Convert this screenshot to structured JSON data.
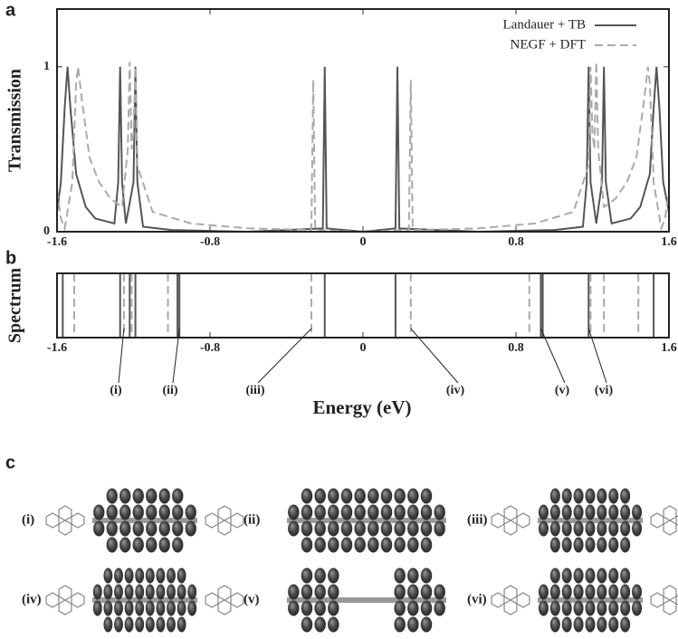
{
  "chart_data": [
    {
      "type": "line",
      "panel_label": "a",
      "y_label": "Transmission",
      "xlim": [
        -1.6,
        1.6
      ],
      "ylim": [
        0,
        1.35
      ],
      "xticks": [
        -1.6,
        -0.8,
        0,
        0.8,
        1.6
      ],
      "yticks": [
        0,
        1
      ],
      "legend": "upper right",
      "series": [
        {
          "name": "Landauer + TB",
          "color": "#555555",
          "dash": false,
          "x": [
            -1.6,
            -1.58,
            -1.56,
            -1.545,
            -1.53,
            -1.5,
            -1.45,
            -1.4,
            -1.3,
            -1.28,
            -1.27,
            -1.26,
            -1.24,
            -1.2,
            -1.19,
            -1.18,
            -1.15,
            -1.0,
            -0.6,
            -0.21,
            -0.2,
            -0.19,
            0.0,
            0.17,
            0.18,
            0.19,
            0.6,
            1.0,
            1.15,
            1.17,
            1.18,
            1.19,
            1.22,
            1.25,
            1.26,
            1.27,
            1.3,
            1.4,
            1.45,
            1.5,
            1.52,
            1.535,
            1.55,
            1.57,
            1.6
          ],
          "values": [
            0.12,
            0.3,
            0.75,
            1.0,
            0.75,
            0.35,
            0.15,
            0.08,
            0.05,
            0.3,
            1.0,
            0.3,
            0.05,
            0.3,
            1.0,
            0.3,
            0.03,
            0.01,
            0.0,
            0.02,
            1.0,
            0.02,
            0.0,
            0.02,
            1.0,
            0.02,
            0.0,
            0.01,
            0.03,
            0.3,
            1.0,
            0.3,
            0.05,
            0.3,
            1.0,
            0.3,
            0.05,
            0.08,
            0.15,
            0.35,
            0.75,
            1.0,
            0.75,
            0.3,
            0.12
          ]
        },
        {
          "name": "NEGF + DFT",
          "color": "#aaaaaa",
          "dash": true,
          "x": [
            -1.6,
            -1.58,
            -1.56,
            -1.52,
            -1.5,
            -1.49,
            -1.47,
            -1.43,
            -1.38,
            -1.32,
            -1.26,
            -1.23,
            -1.22,
            -1.21,
            -1.2,
            -1.19,
            -1.18,
            -1.1,
            -0.9,
            -0.6,
            -0.27,
            -0.26,
            -0.25,
            0.0,
            0.24,
            0.25,
            0.26,
            0.6,
            0.9,
            1.1,
            1.18,
            1.19,
            1.2,
            1.21,
            1.22,
            1.23,
            1.26,
            1.32,
            1.38,
            1.43,
            1.47,
            1.49,
            1.5,
            1.52,
            1.56,
            1.58,
            1.6
          ],
          "values": [
            0.25,
            0.08,
            0.02,
            0.3,
            0.9,
            1.0,
            0.8,
            0.45,
            0.3,
            0.2,
            0.15,
            0.5,
            1.03,
            0.5,
            0.6,
            1.0,
            0.4,
            0.12,
            0.05,
            0.02,
            0.01,
            0.92,
            0.01,
            0.0,
            0.01,
            0.92,
            0.01,
            0.02,
            0.05,
            0.12,
            0.4,
            1.0,
            0.6,
            0.5,
            1.03,
            0.5,
            0.15,
            0.2,
            0.3,
            0.45,
            0.8,
            1.0,
            0.9,
            0.3,
            0.02,
            0.08,
            0.25
          ]
        }
      ]
    },
    {
      "type": "spectrum",
      "panel_label": "b",
      "y_label": "Spectrum",
      "x_label": "Energy (eV)",
      "xlim": [
        -1.6,
        1.6
      ],
      "xticks": [
        -1.6,
        -0.8,
        0,
        0.8,
        1.6
      ],
      "series": [
        {
          "color": "#555555",
          "dash": false,
          "values": [
            -1.57,
            -1.27,
            -1.22,
            -1.19,
            -0.97,
            -0.96,
            -0.2,
            0.17,
            0.93,
            0.94,
            1.18,
            1.52
          ]
        },
        {
          "color": "#aaaaaa",
          "dash": true,
          "values": [
            -1.51,
            -1.25,
            -1.21,
            -1.02,
            -0.27,
            0.25,
            0.87,
            1.19,
            1.26,
            1.44
          ]
        }
      ],
      "annotations": [
        {
          "text": "(i)",
          "x": -1.25
        },
        {
          "text": "(ii)",
          "x": -0.96
        },
        {
          "text": "(iii)",
          "x": -0.27
        },
        {
          "text": "(iv)",
          "x": 0.25
        },
        {
          "text": "(v)",
          "x": 0.93
        },
        {
          "text": "(vi)",
          "x": 1.18
        }
      ]
    }
  ],
  "panel_c": {
    "label": "c",
    "orbitals": [
      "(i)",
      "(ii)",
      "(iii)",
      "(iv)",
      "(v)",
      "(vi)"
    ]
  }
}
